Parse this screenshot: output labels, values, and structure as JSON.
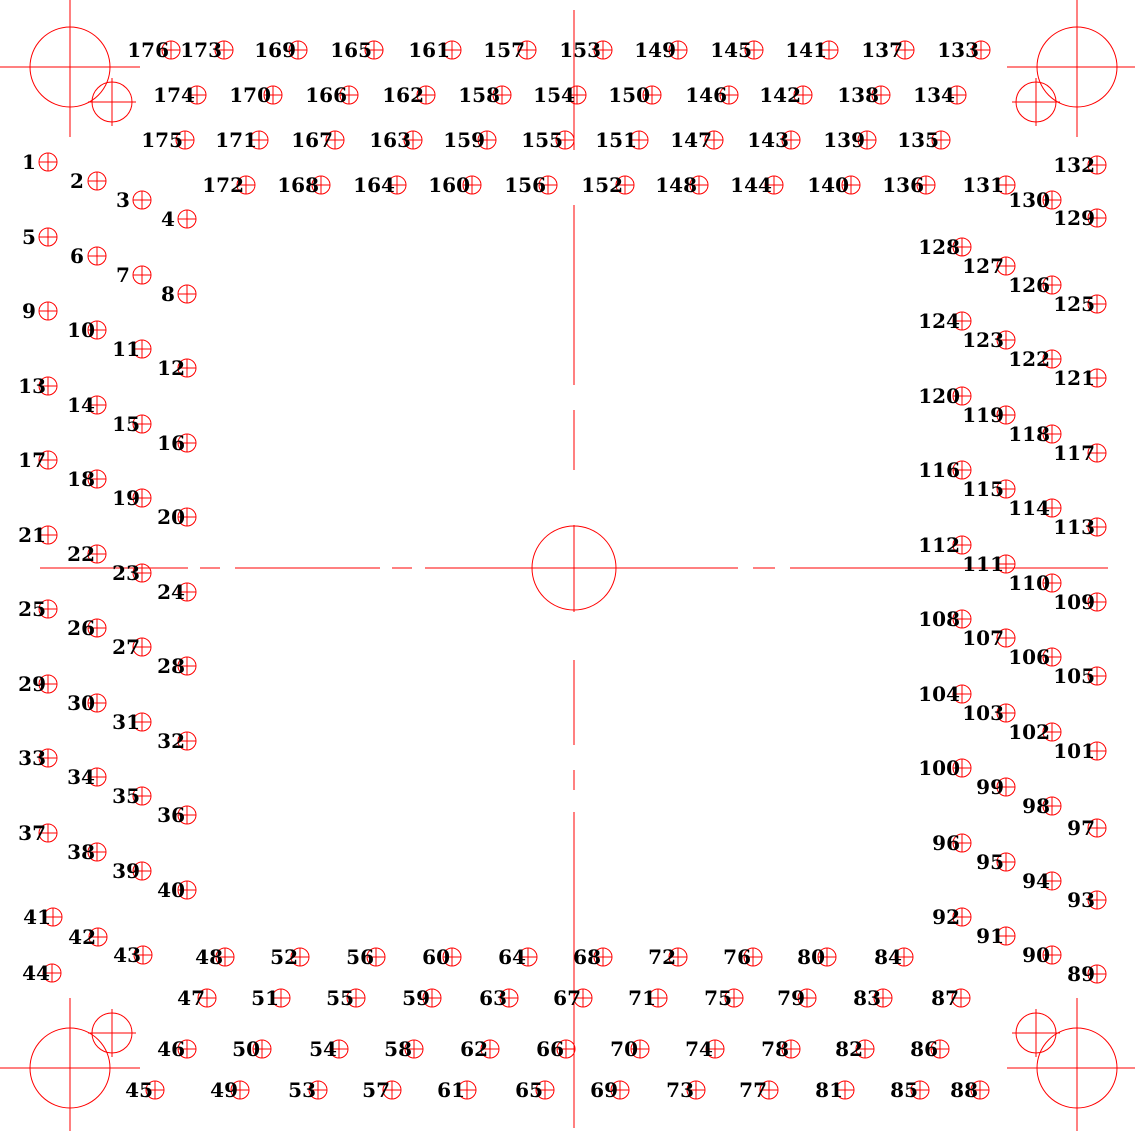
{
  "labels": [
    "1",
    "2",
    "3",
    "4",
    "5",
    "6",
    "7",
    "8",
    "9",
    "10",
    "11",
    "12",
    "13",
    "14",
    "15",
    "16",
    "17",
    "18",
    "19",
    "20",
    "21",
    "22",
    "23",
    "24",
    "25",
    "26",
    "27",
    "28",
    "29",
    "30",
    "31",
    "32",
    "33",
    "34",
    "35",
    "36",
    "37",
    "38",
    "39",
    "40",
    "41",
    "42",
    "43",
    "44",
    "45",
    "46",
    "47",
    "48",
    "49",
    "50",
    "51",
    "52",
    "53",
    "54",
    "55",
    "56",
    "57",
    "58",
    "59",
    "60",
    "61",
    "62",
    "63",
    "64",
    "65",
    "66",
    "67",
    "68",
    "69",
    "70",
    "71",
    "72",
    "73",
    "74",
    "75",
    "76",
    "77",
    "78",
    "79",
    "80",
    "81",
    "82",
    "83",
    "84",
    "85",
    "86",
    "87",
    "88",
    "89",
    "90",
    "91",
    "92",
    "93",
    "94",
    "95",
    "96",
    "97",
    "98",
    "99",
    "100",
    "101",
    "102",
    "103",
    "104",
    "105",
    "106",
    "107",
    "108",
    "109",
    "110",
    "111",
    "112",
    "113",
    "114",
    "115",
    "116",
    "117",
    "118",
    "119",
    "120",
    "121",
    "122",
    "123",
    "124",
    "125",
    "126",
    "127",
    "128",
    "129",
    "130",
    "131",
    "132",
    "133",
    "134",
    "135",
    "136",
    "137",
    "138",
    "139",
    "140",
    "141",
    "142",
    "143",
    "144",
    "145",
    "146",
    "147",
    "148",
    "149",
    "150",
    "151",
    "152",
    "153",
    "154",
    "155",
    "156",
    "157",
    "158",
    "159",
    "160",
    "161",
    "162",
    "163",
    "164",
    "165",
    "166",
    "167",
    "168",
    "169",
    "170",
    "171",
    "172",
    "173",
    "174",
    "175",
    "176"
  ],
  "colors": {
    "line": "#ff0000",
    "text": "#000000",
    "background": "#ffffff"
  },
  "icons": {
    "pad_marker": "circle-crosshair-icon",
    "fiducial": "circle-crosshair-icon",
    "center_mark": "circle-crosshair-icon"
  }
}
